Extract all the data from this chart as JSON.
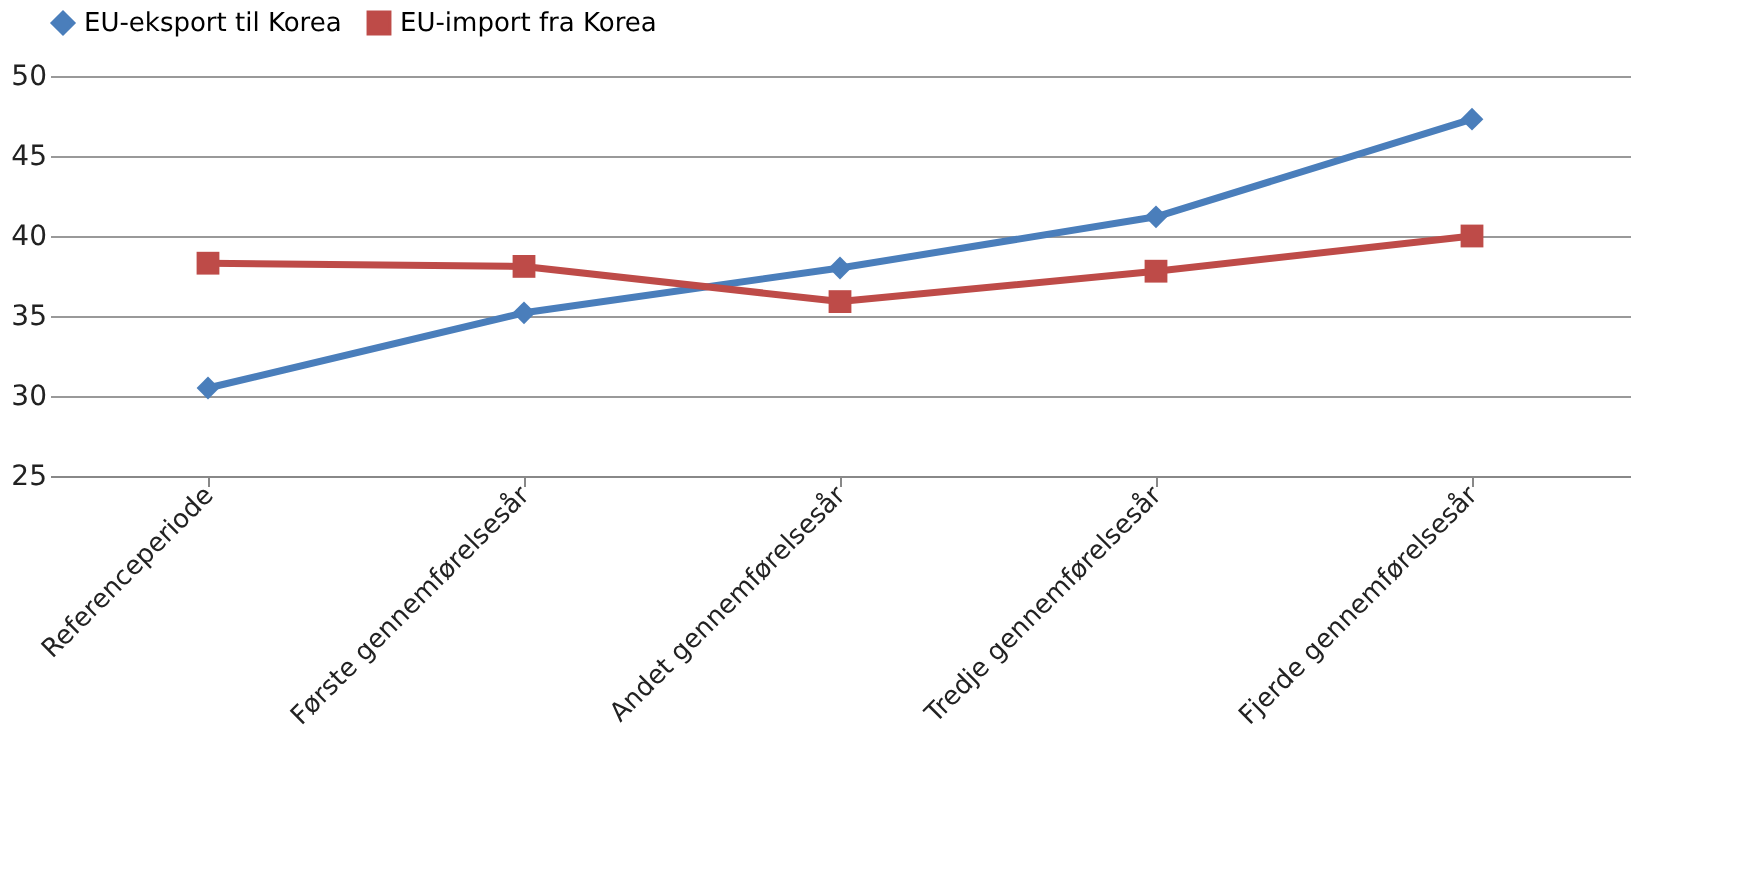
{
  "chart_data": {
    "type": "line",
    "categories": [
      "Referenceperiode",
      "Første gennemførelsesår",
      "Andet gennemførelsesår",
      "Tredje gennemførelsesår",
      "Fjerde gennemførelsesår"
    ],
    "series": [
      {
        "name": "EU-eksport til Korea",
        "color": "#4a7ebb",
        "marker": "diamond",
        "values": [
          30.5,
          35.2,
          38.0,
          41.2,
          47.3
        ]
      },
      {
        "name": "EU-import fra Korea",
        "color": "#be4b48",
        "marker": "square",
        "values": [
          38.3,
          38.1,
          35.9,
          37.8,
          40.0
        ]
      }
    ],
    "ylim": [
      25,
      50
    ],
    "yticks": [
      25,
      30,
      35,
      40,
      45,
      50
    ],
    "grid": "y",
    "legend": "top",
    "line_style": "solid"
  }
}
